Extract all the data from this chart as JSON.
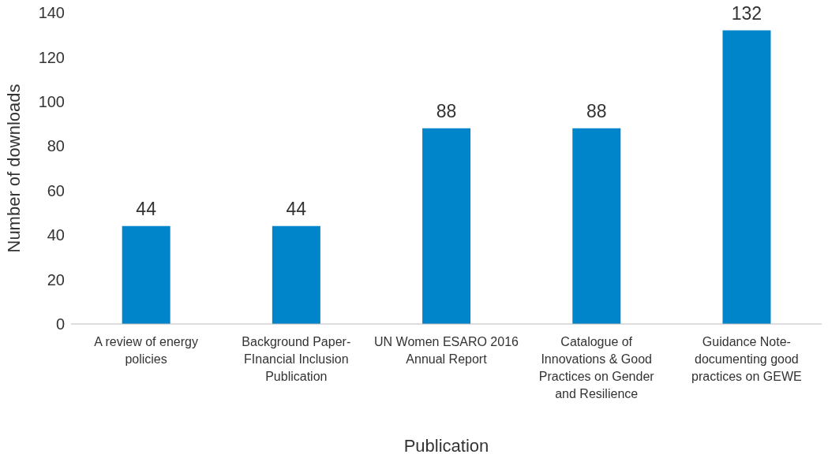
{
  "chart_data": {
    "type": "bar",
    "xlabel": "Publication",
    "ylabel": "Number of downloads",
    "categories": [
      "A review of energy policies",
      "Background Paper-FInancial Inclusion Publication",
      "UN Women ESARO 2016 Annual Report",
      "Catalogue of Innovations & Good Practices on Gender and Resilience",
      "Guidance Note-documenting good practices on GEWE"
    ],
    "values": [
      44,
      44,
      88,
      88,
      132
    ],
    "color": "#0085cb",
    "ylim": [
      0,
      140
    ],
    "yticks": [
      0,
      20,
      40,
      60,
      80,
      100,
      120,
      140
    ],
    "grid": false,
    "legend": false,
    "value_labels": [
      "44",
      "44",
      "88",
      "88",
      "132"
    ]
  }
}
